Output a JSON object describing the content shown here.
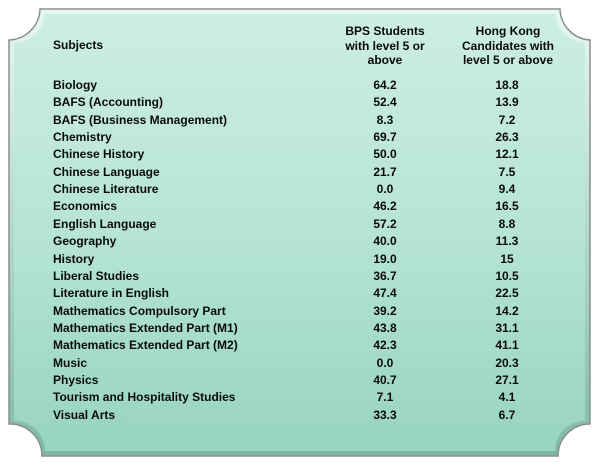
{
  "colors": {
    "panel_fill_top": "#c8ebe0",
    "panel_fill_bottom": "#9fd9c6",
    "panel_border": "#8a8f8d",
    "text": "#0a0a0a"
  },
  "table": {
    "headers": {
      "subject": "Subjects",
      "bps_line1": "BPS Students",
      "bps_line2": "with level 5 or",
      "bps_line3": "above",
      "hk_line1": "Hong Kong",
      "hk_line2": "Candidates with",
      "hk_line3": "level 5 or above"
    },
    "rows": [
      {
        "subject": "Biology",
        "bps": "64.2",
        "hk": "18.8"
      },
      {
        "subject": "BAFS (Accounting)",
        "bps": "52.4",
        "hk": "13.9"
      },
      {
        "subject": "BAFS (Business Management)",
        "bps": "8.3",
        "hk": "7.2"
      },
      {
        "subject": "Chemistry",
        "bps": "69.7",
        "hk": "26.3"
      },
      {
        "subject": "Chinese History",
        "bps": "50.0",
        "hk": "12.1"
      },
      {
        "subject": "Chinese Language",
        "bps": "21.7",
        "hk": "7.5"
      },
      {
        "subject": "Chinese Literature",
        "bps": "0.0",
        "hk": "9.4"
      },
      {
        "subject": "Economics",
        "bps": "46.2",
        "hk": "16.5"
      },
      {
        "subject": "English Language",
        "bps": "57.2",
        "hk": "8.8"
      },
      {
        "subject": "Geography",
        "bps": "40.0",
        "hk": "11.3"
      },
      {
        "subject": "History",
        "bps": "19.0",
        "hk": "15"
      },
      {
        "subject": "Liberal Studies",
        "bps": "36.7",
        "hk": "10.5"
      },
      {
        "subject": "Literature in English",
        "bps": "47.4",
        "hk": "22.5"
      },
      {
        "subject": "Mathematics Compulsory Part",
        "bps": "39.2",
        "hk": "14.2"
      },
      {
        "subject": "Mathematics Extended Part (M1)",
        "bps": "43.8",
        "hk": "31.1"
      },
      {
        "subject": "Mathematics Extended Part (M2)",
        "bps": "42.3",
        "hk": "41.1"
      },
      {
        "subject": "Music",
        "bps": "0.0",
        "hk": "20.3"
      },
      {
        "subject": "Physics",
        "bps": "40.7",
        "hk": "27.1"
      },
      {
        "subject": "Tourism and Hospitality Studies",
        "bps": "7.1",
        "hk": "4.1"
      },
      {
        "subject": "Visual Arts",
        "bps": "33.3",
        "hk": "6.7"
      }
    ]
  }
}
